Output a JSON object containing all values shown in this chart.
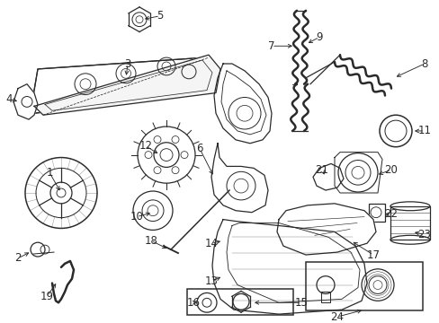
{
  "bg_color": "#ffffff",
  "line_color": "#2a2a2a",
  "figsize": [
    4.89,
    3.6
  ],
  "dpi": 100,
  "label_fontsize": 8.5,
  "lw": 0.9
}
